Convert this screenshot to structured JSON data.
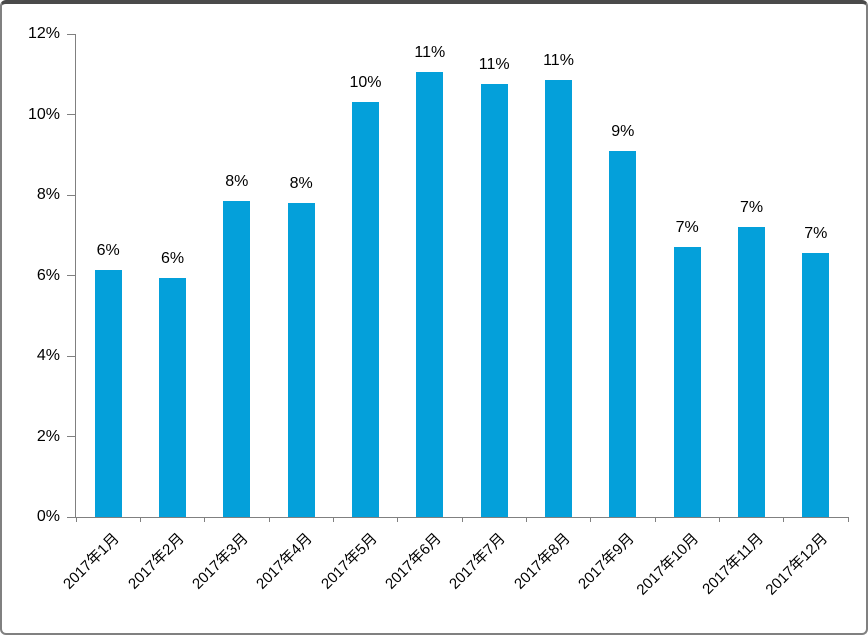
{
  "chart_data": {
    "type": "bar",
    "title": "",
    "xlabel": "",
    "ylabel": "",
    "categories": [
      "2017年1月",
      "2017年2月",
      "2017年3月",
      "2017年4月",
      "2017年5月",
      "2017年6月",
      "2017年7月",
      "2017年8月",
      "2017年9月",
      "2017年10月",
      "2017年11月",
      "2017年12月"
    ],
    "values": [
      6.15,
      5.95,
      7.85,
      7.8,
      10.3,
      11.05,
      10.75,
      10.85,
      9.1,
      6.7,
      7.2,
      6.55
    ],
    "data_labels": [
      "6%",
      "6%",
      "8%",
      "8%",
      "10%",
      "11%",
      "11%",
      "11%",
      "9%",
      "7%",
      "7%",
      "7%"
    ],
    "ylim": [
      0,
      12
    ],
    "y_tick_step": 2,
    "y_tick_labels_top_to_bottom": [
      "12%",
      "10%",
      "8%",
      "6%",
      "4%",
      "2%",
      "0%"
    ],
    "grid": false,
    "legend": "none",
    "x_label_rotation_deg": 45,
    "colors": {
      "bar": "#04a0da",
      "axis": "#808080",
      "text": "#000000",
      "background": "#ffffff"
    }
  }
}
